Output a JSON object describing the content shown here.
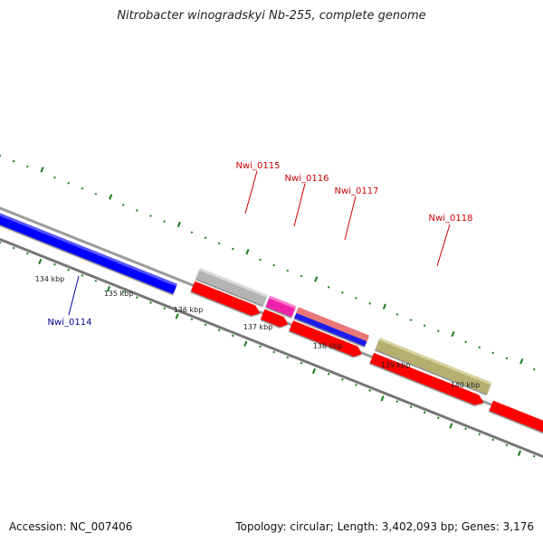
{
  "title": "Nitrobacter winogradskyi Nb-255, complete genome",
  "footer": {
    "accession": "Accession: NC_007406",
    "summary": "Topology: circular; Length: 3,402,093 bp; Genes: 3,176"
  },
  "colors": {
    "forward_cds": "#ff0000",
    "reverse_cds": "#0000ff",
    "label_forward": "#cc0000",
    "label_reverse": "#000099",
    "tick": "#1a7a1a",
    "backbone": "#888888"
  },
  "scale_labels": [
    "134 kbp",
    "135 kbp",
    "136 kbp",
    "137 kbp",
    "138 kbp",
    "139 kbp",
    "140 kbp"
  ],
  "genes": [
    {
      "name": "Nwi_0114",
      "strand": "reverse",
      "color": "#0000ff"
    },
    {
      "name": "Nwi_0115",
      "strand": "forward",
      "color": "#b0b0b0"
    },
    {
      "name": "Nwi_0116",
      "strand": "forward",
      "color": "#ee22aa"
    },
    {
      "name": "Nwi_0117",
      "strand": "forward",
      "color": "#e87878"
    },
    {
      "name": "Nwi_0118",
      "strand": "forward",
      "color": "#b5b070"
    }
  ]
}
